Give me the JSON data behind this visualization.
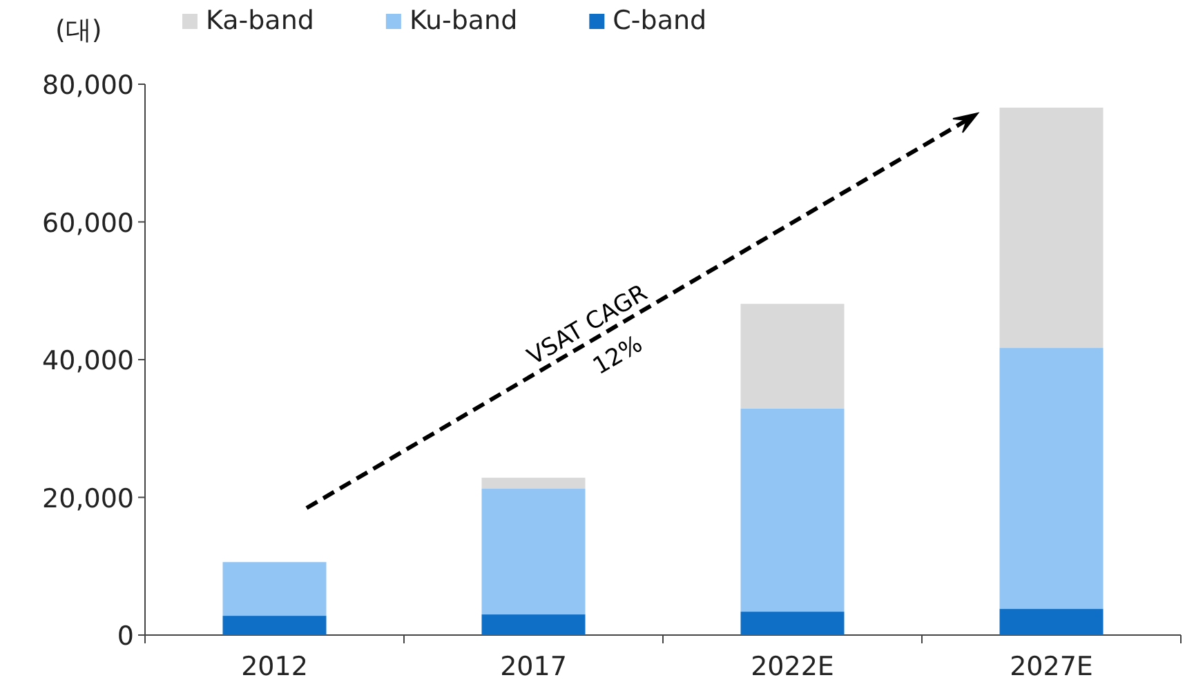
{
  "chart_data": {
    "type": "bar",
    "stacked": true,
    "ylabel": "(대)",
    "categories": [
      "2012",
      "2017",
      "2022E",
      "2027E"
    ],
    "series": [
      {
        "name": "C-band",
        "color": "#0f6fc6",
        "values": [
          2800,
          3000,
          3400,
          3800
        ]
      },
      {
        "name": "Ku-band",
        "color": "#93c5f4",
        "values": [
          7800,
          18250,
          29500,
          37900
        ]
      },
      {
        "name": "Ka-band",
        "color": "#d9d9d9",
        "values": [
          0,
          1600,
          15200,
          34900
        ]
      }
    ],
    "ylim": [
      0,
      80000
    ],
    "yticks": [
      {
        "value": 0,
        "label": "0"
      },
      {
        "value": 20000,
        "label": "20,000"
      },
      {
        "value": 40000,
        "label": "40,000"
      },
      {
        "value": 60000,
        "label": "60,000"
      },
      {
        "value": 80000,
        "label": "80,000"
      }
    ],
    "annotations": [
      "VSAT CAGR",
      "12%"
    ],
    "legend": "top"
  }
}
